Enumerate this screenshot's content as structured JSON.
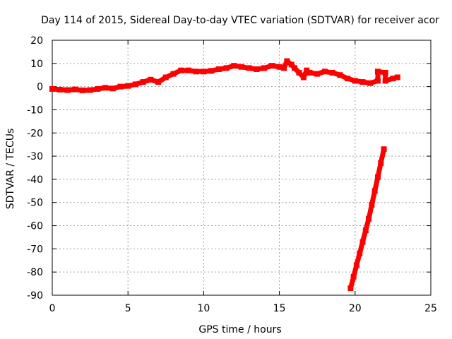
{
  "chart_data": {
    "type": "scatter",
    "title": "Day 114 of 2015, Sidereal Day-to-day VTEC variation (SDTVAR) for receiver acor",
    "xlabel": "GPS time / hours",
    "ylabel": "SDTVAR / TECUs",
    "xlim": [
      0,
      25
    ],
    "ylim": [
      -90,
      20
    ],
    "x_ticks": [
      0,
      5,
      10,
      15,
      20,
      25
    ],
    "y_ticks": [
      20,
      10,
      0,
      -10,
      -20,
      -30,
      -40,
      -50,
      -60,
      -70,
      -80,
      -90
    ],
    "grid": true,
    "marker_color": "#ff0000",
    "series": [
      {
        "points": [
          [
            0.0,
            -1.0
          ],
          [
            0.5,
            -1.3
          ],
          [
            1.0,
            -1.5
          ],
          [
            1.5,
            -1.2
          ],
          [
            2.0,
            -1.6
          ],
          [
            2.5,
            -1.5
          ],
          [
            3.0,
            -1.0
          ],
          [
            3.5,
            -0.5
          ],
          [
            4.0,
            -0.8
          ],
          [
            4.5,
            0.0
          ],
          [
            5.0,
            0.3
          ],
          [
            5.5,
            1.0
          ],
          [
            6.0,
            2.0
          ],
          [
            6.5,
            3.0
          ],
          [
            7.0,
            2.0
          ],
          [
            7.5,
            4.0
          ],
          [
            8.0,
            5.5
          ],
          [
            8.5,
            7.0
          ],
          [
            9.0,
            7.0
          ],
          [
            9.5,
            6.5
          ],
          [
            10.0,
            6.5
          ],
          [
            10.5,
            6.8
          ],
          [
            11.0,
            7.5
          ],
          [
            11.5,
            8.0
          ],
          [
            12.0,
            9.0
          ],
          [
            12.5,
            8.5
          ],
          [
            13.0,
            8.0
          ],
          [
            13.5,
            7.5
          ],
          [
            14.0,
            8.0
          ],
          [
            14.5,
            9.0
          ],
          [
            15.0,
            8.5
          ],
          [
            15.3,
            8.0
          ],
          [
            15.5,
            11.0
          ],
          [
            15.8,
            9.5
          ],
          [
            16.0,
            8.0
          ],
          [
            16.3,
            6.0
          ],
          [
            16.6,
            4.0
          ],
          [
            16.8,
            7.0
          ],
          [
            17.0,
            6.0
          ],
          [
            17.5,
            5.5
          ],
          [
            18.0,
            6.5
          ],
          [
            18.5,
            6.0
          ],
          [
            19.0,
            5.0
          ],
          [
            19.5,
            3.5
          ],
          [
            20.0,
            2.5
          ],
          [
            20.5,
            2.0
          ],
          [
            21.0,
            1.5
          ],
          [
            21.5,
            2.5
          ],
          [
            21.5,
            6.5
          ],
          [
            22.0,
            6.0
          ],
          [
            22.0,
            2.5
          ],
          [
            22.5,
            3.5
          ],
          [
            22.8,
            4.0
          ]
        ]
      },
      {
        "points": [
          [
            19.7,
            -87.0
          ],
          [
            19.9,
            -82.0
          ],
          [
            20.1,
            -77.0
          ],
          [
            20.3,
            -72.0
          ],
          [
            20.5,
            -67.0
          ],
          [
            20.7,
            -62.0
          ],
          [
            20.9,
            -57.0
          ],
          [
            21.1,
            -51.0
          ],
          [
            21.3,
            -45.0
          ],
          [
            21.5,
            -39.0
          ],
          [
            21.7,
            -33.0
          ],
          [
            21.9,
            -27.0
          ]
        ]
      }
    ]
  }
}
